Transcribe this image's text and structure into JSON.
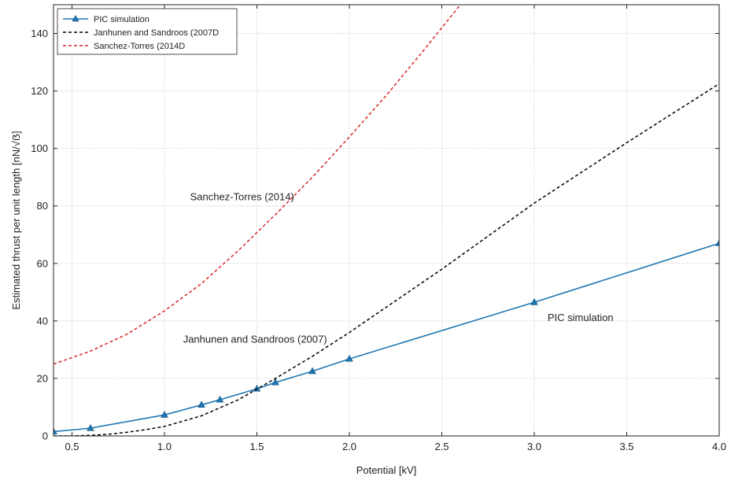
{
  "chart_data": {
    "type": "line",
    "title": "",
    "xlabel": "Potential [kV]",
    "ylabel": "Estimated thrust per unit length [nN/√ẞ]",
    "xlim": [
      0.4,
      4.0
    ],
    "ylim": [
      0,
      150
    ],
    "xticks": [
      0.5,
      1.0,
      1.5,
      2.0,
      2.5,
      3.0,
      3.5,
      4.0
    ],
    "xtick_labels": [
      "0.5",
      "1.0",
      "1.5",
      "2.0",
      "2.5",
      "3.0",
      "3.5",
      "4.0"
    ],
    "yticks": [
      0,
      20,
      40,
      60,
      80,
      100,
      120,
      140
    ],
    "ytick_labels": [
      "0",
      "20",
      "40",
      "60",
      "80",
      "100",
      "120",
      "140"
    ],
    "grid": true,
    "legend_position": "top-left",
    "series": [
      {
        "name": "PIC simulation",
        "color": "#1f77b4",
        "style": "solid",
        "marker": "triangle",
        "x": [
          0.4,
          0.6,
          1.0,
          1.2,
          1.3,
          1.5,
          1.6,
          1.8,
          2.0,
          3.0,
          4.0
        ],
        "y": [
          1.5,
          2.7,
          7.3,
          10.8,
          12.6,
          16.4,
          18.6,
          22.5,
          26.8,
          46.5,
          67.0
        ]
      },
      {
        "name": "Janhunen and Sandroos (2007D",
        "color": "#000000",
        "style": "dashed",
        "marker": "none",
        "x": [
          0.4,
          0.5,
          0.6,
          0.7,
          0.8,
          0.9,
          1.0,
          1.2,
          1.4,
          1.6,
          1.8,
          2.0,
          2.5,
          3.0,
          3.5,
          4.0
        ],
        "y": [
          0,
          0,
          0.2,
          0.6,
          1.3,
          2.2,
          3.3,
          7.0,
          12.6,
          20.0,
          27.7,
          36.0,
          58.0,
          81.0,
          102.0,
          122.5
        ]
      },
      {
        "name": "Sanchez-Torres (2014D",
        "color": "#d62728",
        "style": "dashed",
        "marker": "none",
        "x": [
          0.4,
          0.6,
          0.8,
          1.0,
          1.2,
          1.4,
          1.6,
          1.8,
          2.0,
          2.2,
          2.4,
          2.6
        ],
        "y": [
          25.0,
          29.5,
          35.5,
          43.5,
          53.0,
          64.5,
          77.0,
          90.0,
          104.0,
          118.5,
          134.0,
          150.0
        ]
      }
    ],
    "annotations": [
      {
        "text": "Sanchez-Torres (2014)",
        "x": 1.42,
        "y": 82
      },
      {
        "text": "Janhunen and Sandroos (2007)",
        "x": 1.49,
        "y": 32.5
      },
      {
        "text": "PIC simulation",
        "x": 3.25,
        "y": 40
      }
    ]
  }
}
